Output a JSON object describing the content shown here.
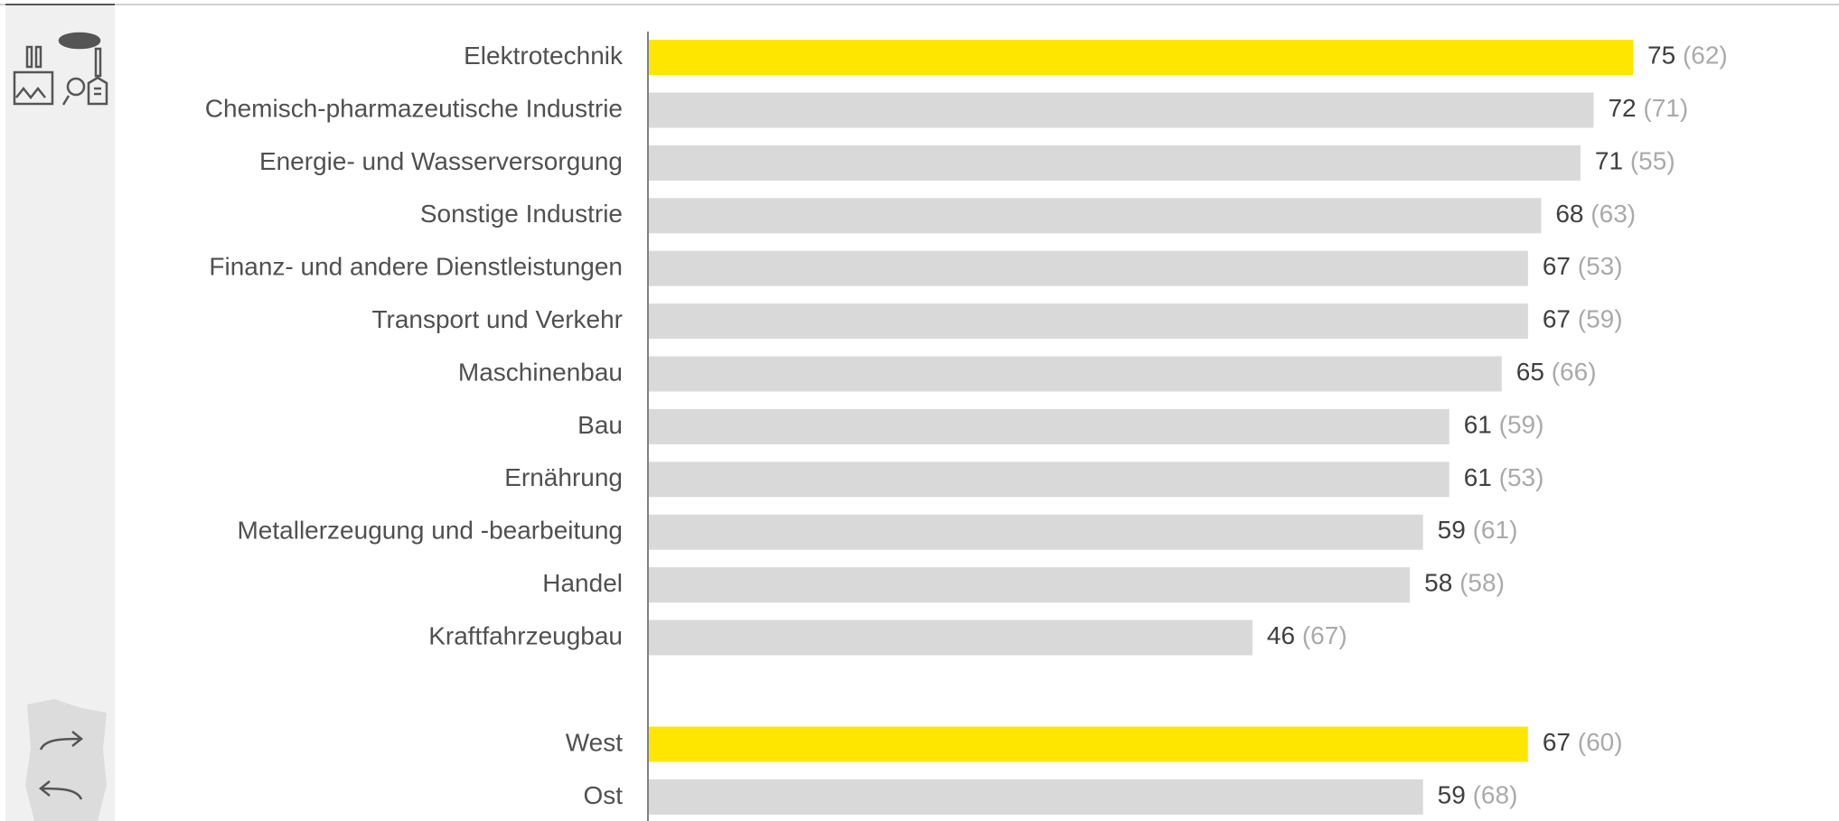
{
  "chart_data": {
    "type": "bar",
    "xlim": [
      0,
      100
    ],
    "color": "#d9d9d9",
    "highlight_color": "#ffe600",
    "groups": [
      {
        "categories": [
          "Elektrotechnik",
          "Chemisch-pharmazeutische Industrie",
          "Energie- und Wasserversorgung",
          "Sonstige Industrie",
          "Finanz- und andere Dienstleistungen",
          "Transport und Verkehr",
          "Maschinenbau",
          "Bau",
          "Ernährung",
          "Metallerzeugung und -bearbeitung",
          "Handel",
          "Kraftfahrzeugbau"
        ],
        "values": [
          75,
          72,
          71,
          68,
          67,
          67,
          65,
          61,
          61,
          59,
          58,
          46
        ],
        "previous_value_labels": [
          "(62)",
          "(71)",
          "(55)",
          "(63)",
          "(53)",
          "(59)",
          "(66)",
          "(59)",
          "(53)",
          "(61)",
          "(58)",
          "(67)"
        ],
        "highlight": [
          true,
          false,
          false,
          false,
          false,
          false,
          false,
          false,
          false,
          false,
          false,
          false
        ]
      },
      {
        "categories": [
          "West",
          "Ost"
        ],
        "values": [
          67,
          59
        ],
        "previous_value_labels": [
          "(60)",
          "(68)"
        ],
        "highlight": [
          true,
          false
        ]
      }
    ]
  }
}
